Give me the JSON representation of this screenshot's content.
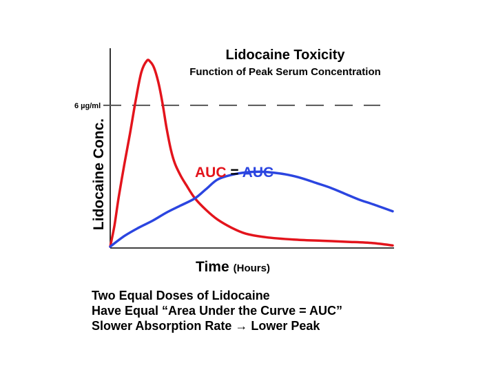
{
  "chart_data": {
    "type": "line",
    "title": "Lidocaine Toxicity",
    "subtitle": "Function of Peak Serum Concentration",
    "xlabel": "Time",
    "xlabel_unit": "(Hours)",
    "ylabel": "Lidocaine Conc.",
    "threshold": {
      "label": "6 µg/ml",
      "value": 6
    },
    "ylim": [
      0,
      7.9
    ],
    "xlim": [
      0,
      10
    ],
    "grid": false,
    "annotation": {
      "left": "AUC",
      "middle": " = ",
      "right": "AUC"
    },
    "colors": {
      "fast": "#e3141c",
      "slow": "#2b45e0",
      "threshold": "#555555",
      "axis": "#000000"
    },
    "series": [
      {
        "color": "#e3141c",
        "x": [
          0,
          0.15,
          0.3,
          0.5,
          0.7,
          0.9,
          1.1,
          1.3,
          1.42,
          1.55,
          1.7,
          1.85,
          2.0,
          2.15,
          2.3,
          2.5,
          2.7,
          3.0,
          3.4,
          3.8,
          4.3,
          4.8,
          5.5,
          6.5,
          7.5,
          8.5,
          9.3,
          10
        ],
        "y": [
          0,
          0.9,
          2.1,
          3.5,
          4.8,
          6.2,
          7.4,
          7.9,
          7.85,
          7.6,
          7.0,
          6.1,
          5.0,
          4.1,
          3.5,
          3.0,
          2.6,
          2.05,
          1.55,
          1.15,
          0.8,
          0.55,
          0.4,
          0.3,
          0.25,
          0.2,
          0.15,
          0.05
        ]
      },
      {
        "color": "#2b45e0",
        "x": [
          0,
          0.5,
          1.0,
          1.5,
          2.0,
          2.5,
          3.0,
          3.4,
          3.8,
          4.3,
          4.8,
          5.3,
          5.8,
          6.3,
          6.8,
          7.3,
          7.8,
          8.3,
          8.8,
          9.3,
          10
        ],
        "y": [
          0,
          0.45,
          0.8,
          1.1,
          1.45,
          1.75,
          2.05,
          2.45,
          2.85,
          3.05,
          3.15,
          3.18,
          3.14,
          3.05,
          2.9,
          2.7,
          2.5,
          2.25,
          2.0,
          1.8,
          1.5
        ]
      }
    ]
  },
  "notes": [
    "Two Equal Doses of Lidocaine",
    "Have Equal “Area Under the Curve = AUC”",
    "Slower Absorption Rate → Lower Peak"
  ]
}
